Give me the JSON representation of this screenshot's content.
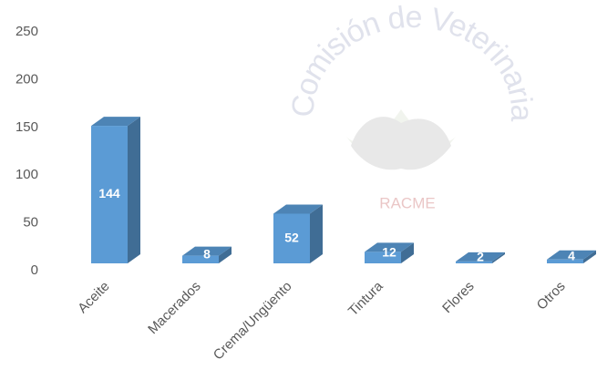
{
  "chart_data": {
    "type": "bar3d",
    "categories": [
      "Aceite",
      "Macerados",
      "Crema/Ungüento",
      "Tintura",
      "Flores",
      "Otros"
    ],
    "values": [
      144,
      8,
      52,
      12,
      2,
      4
    ],
    "color": "#5b9bd5",
    "ylim": [
      0,
      250
    ],
    "yticks": [
      0,
      50,
      100,
      150,
      200,
      250
    ],
    "grid": false,
    "watermark_arc_text": "Comisión de Veterinaria",
    "watermark_label": "RACME"
  }
}
